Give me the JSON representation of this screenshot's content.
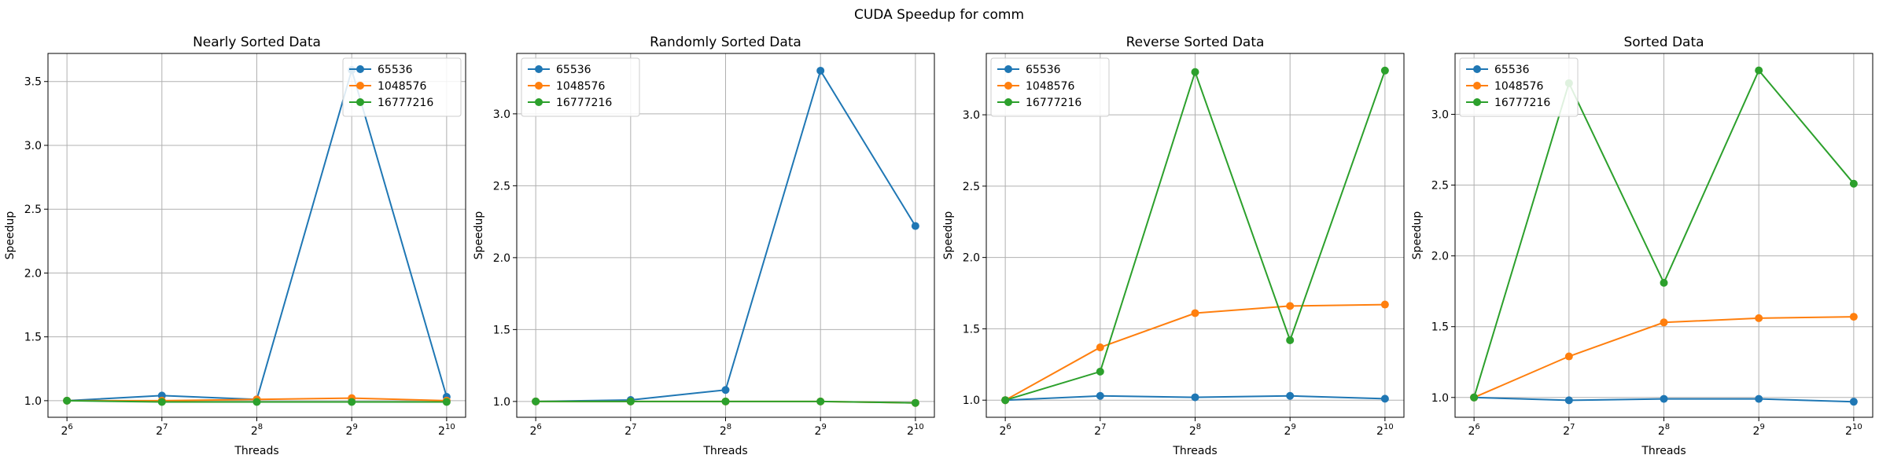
{
  "figure": {
    "suptitle": "CUDA Speedup for comm"
  },
  "colors": {
    "s0": "#1f77b4",
    "s1": "#ff7f0e",
    "s2": "#2ca02c",
    "grid": "#b0b0b0"
  },
  "chart_data": [
    {
      "type": "line",
      "title": "Nearly Sorted Data",
      "xlabel": "Threads",
      "ylabel": "Speedup",
      "x": [
        64,
        128,
        256,
        512,
        1024
      ],
      "x_tick_labels": [
        [
          "2",
          "6"
        ],
        [
          "2",
          "7"
        ],
        [
          "2",
          "8"
        ],
        [
          "2",
          "9"
        ],
        [
          "2",
          "10"
        ]
      ],
      "xscale": "log2",
      "ylim": [
        0.87,
        3.72
      ],
      "yticks": [
        "1.0",
        "1.5",
        "2.0",
        "2.5",
        "3.0",
        "3.5"
      ],
      "grid": true,
      "legend": "top-right",
      "series": [
        {
          "name": "65536",
          "color": "#1f77b4",
          "values": [
            1.0,
            1.04,
            1.01,
            3.59,
            1.03
          ]
        },
        {
          "name": "1048576",
          "color": "#ff7f0e",
          "values": [
            1.0,
            1.0,
            1.01,
            1.02,
            1.0
          ]
        },
        {
          "name": "16777216",
          "color": "#2ca02c",
          "values": [
            1.0,
            0.99,
            0.99,
            0.99,
            0.99
          ]
        }
      ]
    },
    {
      "type": "line",
      "title": "Randomly Sorted Data",
      "xlabel": "Threads",
      "ylabel": "Speedup",
      "x": [
        64,
        128,
        256,
        512,
        1024
      ],
      "x_tick_labels": [
        [
          "2",
          "6"
        ],
        [
          "2",
          "7"
        ],
        [
          "2",
          "8"
        ],
        [
          "2",
          "9"
        ],
        [
          "2",
          "10"
        ]
      ],
      "xscale": "log2",
      "ylim": [
        0.89,
        3.42
      ],
      "yticks": [
        "1.0",
        "1.5",
        "2.0",
        "2.5",
        "3.0"
      ],
      "grid": true,
      "legend": "top-left",
      "series": [
        {
          "name": "65536",
          "color": "#1f77b4",
          "values": [
            1.0,
            1.01,
            1.08,
            3.3,
            2.22
          ]
        },
        {
          "name": "1048576",
          "color": "#ff7f0e",
          "values": [
            1.0,
            1.0,
            1.0,
            1.0,
            0.99
          ]
        },
        {
          "name": "16777216",
          "color": "#2ca02c",
          "values": [
            1.0,
            1.0,
            1.0,
            1.0,
            0.99
          ]
        }
      ]
    },
    {
      "type": "line",
      "title": "Reverse Sorted Data",
      "xlabel": "Threads",
      "ylabel": "Speedup",
      "x": [
        64,
        128,
        256,
        512,
        1024
      ],
      "x_tick_labels": [
        [
          "2",
          "6"
        ],
        [
          "2",
          "7"
        ],
        [
          "2",
          "8"
        ],
        [
          "2",
          "9"
        ],
        [
          "2",
          "10"
        ]
      ],
      "xscale": "log2",
      "ylim": [
        0.88,
        3.43
      ],
      "yticks": [
        "1.0",
        "1.5",
        "2.0",
        "2.5",
        "3.0"
      ],
      "grid": true,
      "legend": "top-left",
      "series": [
        {
          "name": "65536",
          "color": "#1f77b4",
          "values": [
            1.0,
            1.03,
            1.02,
            1.03,
            1.01
          ]
        },
        {
          "name": "1048576",
          "color": "#ff7f0e",
          "values": [
            1.0,
            1.37,
            1.61,
            1.66,
            1.67
          ]
        },
        {
          "name": "16777216",
          "color": "#2ca02c",
          "values": [
            1.0,
            1.2,
            3.3,
            1.42,
            3.31
          ]
        }
      ]
    },
    {
      "type": "line",
      "title": "Sorted Data",
      "xlabel": "Threads",
      "ylabel": "Speedup",
      "x": [
        64,
        128,
        256,
        512,
        1024
      ],
      "x_tick_labels": [
        [
          "2",
          "6"
        ],
        [
          "2",
          "7"
        ],
        [
          "2",
          "8"
        ],
        [
          "2",
          "9"
        ],
        [
          "2",
          "10"
        ]
      ],
      "xscale": "log2",
      "ylim": [
        0.86,
        3.43
      ],
      "yticks": [
        "1.0",
        "1.5",
        "2.0",
        "2.5",
        "3.0"
      ],
      "grid": true,
      "legend": "top-left",
      "series": [
        {
          "name": "65536",
          "color": "#1f77b4",
          "values": [
            1.0,
            0.98,
            0.99,
            0.99,
            0.97
          ]
        },
        {
          "name": "1048576",
          "color": "#ff7f0e",
          "values": [
            1.0,
            1.29,
            1.53,
            1.56,
            1.57
          ]
        },
        {
          "name": "16777216",
          "color": "#2ca02c",
          "values": [
            1.0,
            3.22,
            1.81,
            3.31,
            2.51
          ]
        }
      ]
    }
  ]
}
